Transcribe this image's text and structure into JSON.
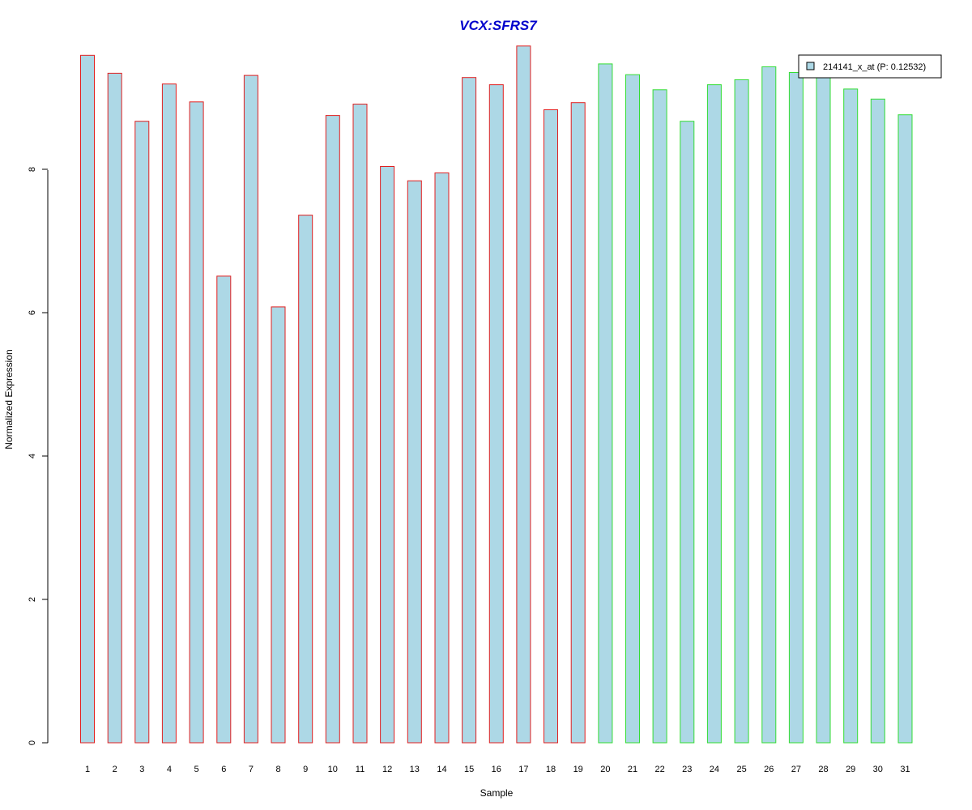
{
  "chart_data": {
    "type": "bar",
    "title": "VCX:SFRS7",
    "xlabel": "Sample",
    "ylabel": "Normalized Expression",
    "ylim": [
      0,
      9.75
    ],
    "yticks": [
      0,
      2,
      4,
      6,
      8
    ],
    "grid": false,
    "legend": {
      "placement": "top-right",
      "entries": [
        "214141_x_at (P: 0.12532)"
      ]
    },
    "categories": [
      "1",
      "2",
      "3",
      "4",
      "5",
      "6",
      "7",
      "8",
      "9",
      "10",
      "11",
      "12",
      "13",
      "14",
      "15",
      "16",
      "17",
      "18",
      "19",
      "20",
      "21",
      "22",
      "23",
      "24",
      "25",
      "26",
      "27",
      "28",
      "29",
      "30",
      "31"
    ],
    "series": [
      {
        "name": "214141_x_at (P: 0.12532)",
        "values": [
          9.59,
          9.34,
          8.67,
          9.19,
          8.94,
          6.51,
          9.31,
          6.08,
          7.36,
          8.75,
          8.91,
          8.04,
          7.84,
          7.95,
          9.28,
          9.18,
          9.72,
          8.83,
          8.93,
          9.47,
          9.32,
          9.11,
          8.67,
          9.18,
          9.25,
          9.43,
          9.35,
          9.33,
          9.12,
          8.98,
          8.76
        ]
      }
    ],
    "group_colors": [
      "#e02020",
      "#e02020",
      "#e02020",
      "#e02020",
      "#e02020",
      "#e02020",
      "#e02020",
      "#e02020",
      "#e02020",
      "#e02020",
      "#e02020",
      "#e02020",
      "#e02020",
      "#e02020",
      "#e02020",
      "#e02020",
      "#e02020",
      "#e02020",
      "#e02020",
      "#33dd33",
      "#33dd33",
      "#33dd33",
      "#33dd33",
      "#33dd33",
      "#33dd33",
      "#33dd33",
      "#33dd33",
      "#33dd33",
      "#33dd33",
      "#33dd33",
      "#33dd33"
    ],
    "bar_fill": "#add8e6",
    "title_color": "#0000cc"
  }
}
